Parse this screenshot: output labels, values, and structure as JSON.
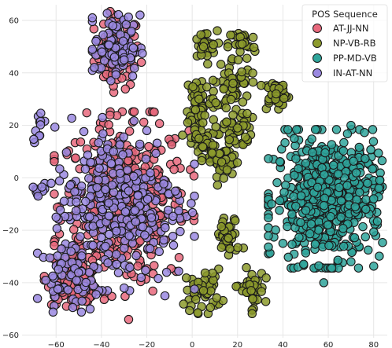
{
  "chart_data": {
    "type": "scatter",
    "title": "",
    "xlabel": "",
    "ylabel": "",
    "xlim": [
      -75,
      86
    ],
    "ylim": [
      -61,
      66
    ],
    "xticks": [
      -60,
      -40,
      -20,
      0,
      20,
      40,
      60,
      80
    ],
    "yticks": [
      -60,
      -40,
      -20,
      0,
      20,
      40,
      60
    ],
    "x_tick_labels": [
      "−60",
      "−40",
      "−20",
      "0",
      "20",
      "40",
      "60",
      "80"
    ],
    "y_tick_labels": [
      "−60",
      "−40",
      "−20",
      "0",
      "20",
      "40",
      "60"
    ],
    "grid": true,
    "legend": {
      "title": "POS Sequence",
      "position": "top-right",
      "entries": [
        {
          "label": "AT-JJ-NN",
          "color": "#e8697d"
        },
        {
          "label": "NP-VB-RB",
          "color": "#8c9a2c"
        },
        {
          "label": "PP-MD-VB",
          "color": "#2fa59b"
        },
        {
          "label": "IN-AT-NN",
          "color": "#9a88e0"
        }
      ]
    },
    "series": [
      {
        "name": "AT-JJ-NN",
        "color": "#e8697d",
        "clusters": [
          {
            "center": [
              -33,
              48
            ],
            "spread": [
              5,
              7
            ],
            "count": 90
          },
          {
            "center": [
              -30,
              -10
            ],
            "spread": [
              14,
              16
            ],
            "count": 380
          },
          {
            "center": [
              -52,
              -38
            ],
            "spread": [
              6,
              5
            ],
            "count": 90
          }
        ],
        "sample_points": [
          [
            -36,
            60
          ],
          [
            -28,
            55
          ],
          [
            -35,
            43
          ],
          [
            -31,
            38
          ],
          [
            -45,
            5
          ],
          [
            -25,
            10
          ],
          [
            -15,
            -5
          ],
          [
            -40,
            -20
          ],
          [
            -55,
            -40
          ],
          [
            -50,
            -45
          ],
          [
            -28,
            -54
          ]
        ]
      },
      {
        "name": "NP-VB-RB",
        "color": "#8c9a2c",
        "clusters": [
          {
            "center": [
              5,
              50
            ],
            "spread": [
              3,
              3
            ],
            "count": 28
          },
          {
            "center": [
              22,
              51
            ],
            "spread": [
              3,
              3
            ],
            "count": 28
          },
          {
            "center": [
              3,
              30
            ],
            "spread": [
              3,
              5
            ],
            "count": 45
          },
          {
            "center": [
              18,
              36
            ],
            "spread": [
              4,
              5
            ],
            "count": 55
          },
          {
            "center": [
              37,
              32
            ],
            "spread": [
              3,
              3
            ],
            "count": 35
          },
          {
            "center": [
              3,
              15
            ],
            "spread": [
              4,
              4
            ],
            "count": 40
          },
          {
            "center": [
              20,
              19
            ],
            "spread": [
              3,
              4
            ],
            "count": 38
          },
          {
            "center": [
              13,
              6
            ],
            "spread": [
              4,
              4
            ],
            "count": 45
          },
          {
            "center": [
              16,
              -23
            ],
            "spread": [
              3,
              4
            ],
            "count": 38
          },
          {
            "center": [
              5,
              -43
            ],
            "spread": [
              4,
              4
            ],
            "count": 45
          },
          {
            "center": [
              26,
              -43
            ],
            "spread": [
              3,
              4
            ],
            "count": 38
          }
        ],
        "sample_points": [
          [
            5,
            50
          ],
          [
            22,
            51
          ],
          [
            3,
            30
          ],
          [
            18,
            36
          ],
          [
            37,
            32
          ],
          [
            3,
            15
          ],
          [
            20,
            19
          ],
          [
            13,
            6
          ],
          [
            16,
            -23
          ],
          [
            5,
            -43
          ],
          [
            26,
            -43
          ]
        ]
      },
      {
        "name": "PP-MD-VB",
        "color": "#2fa59b",
        "clusters": [
          {
            "center": [
              60,
              -8
            ],
            "spread": [
              12,
              12
            ],
            "count": 560
          }
        ],
        "sample_points": [
          [
            45,
            15
          ],
          [
            70,
            20
          ],
          [
            80,
            -8
          ],
          [
            40,
            -25
          ],
          [
            70,
            -32
          ],
          [
            58,
            -40
          ],
          [
            35,
            -10
          ]
        ]
      },
      {
        "name": "IN-AT-NN",
        "color": "#9a88e0",
        "clusters": [
          {
            "center": [
              -33,
              50
            ],
            "spread": [
              5,
              6
            ],
            "count": 90
          },
          {
            "center": [
              -32,
              -10
            ],
            "spread": [
              15,
              15
            ],
            "count": 300
          },
          {
            "center": [
              -68,
              20
            ],
            "spread": [
              1,
              3
            ],
            "count": 10
          },
          {
            "center": [
              -68,
              -5
            ],
            "spread": [
              1,
              2
            ],
            "count": 8
          },
          {
            "center": [
              -55,
              -38
            ],
            "spread": [
              6,
              6
            ],
            "count": 50
          }
        ],
        "sample_points": [
          [
            -35,
            58
          ],
          [
            -30,
            45
          ],
          [
            -20,
            18
          ],
          [
            -28,
            -5
          ],
          [
            -60,
            -15
          ],
          [
            -45,
            -50
          ],
          [
            -30,
            -42
          ],
          [
            -12,
            -45
          ]
        ]
      }
    ]
  }
}
